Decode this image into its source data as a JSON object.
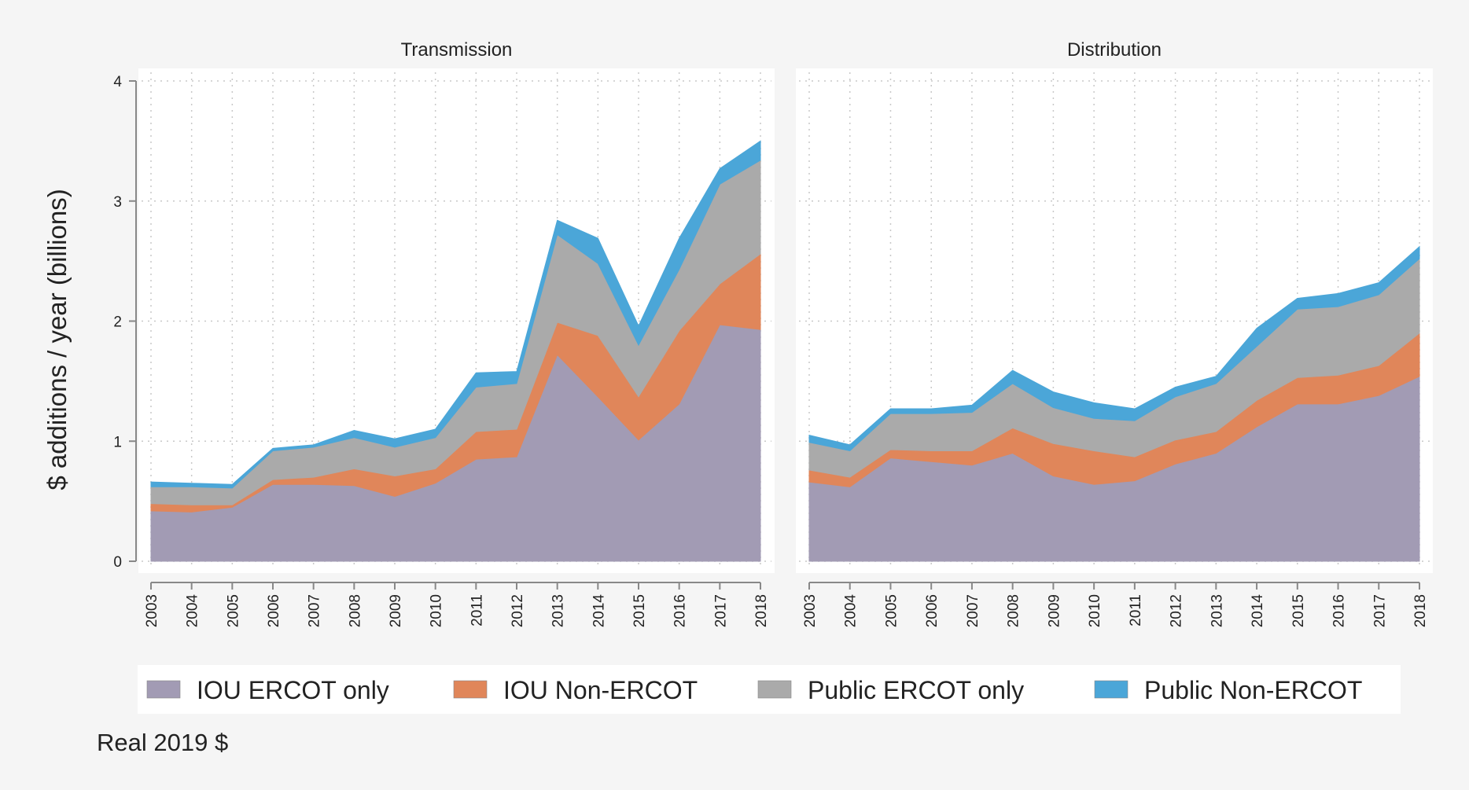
{
  "chart_data": [
    {
      "type": "area",
      "stacked": true,
      "title": "Transmission",
      "ylabel": "$ additions / year (billions)",
      "ylim": [
        0,
        4
      ],
      "yticks": [
        0,
        1,
        2,
        3,
        4
      ],
      "grid": true,
      "x": [
        2003,
        2004,
        2005,
        2006,
        2007,
        2008,
        2009,
        2010,
        2011,
        2012,
        2013,
        2014,
        2015,
        2016,
        2017,
        2018
      ],
      "series": [
        {
          "name": "IOU ERCOT only",
          "values": [
            0.42,
            0.41,
            0.45,
            0.64,
            0.64,
            0.63,
            0.54,
            0.65,
            0.85,
            0.87,
            1.72,
            1.37,
            1.01,
            1.31,
            1.97,
            1.93
          ]
        },
        {
          "name": "IOU Non-ERCOT",
          "values": [
            0.06,
            0.06,
            0.02,
            0.04,
            0.06,
            0.14,
            0.17,
            0.12,
            0.23,
            0.23,
            0.27,
            0.51,
            0.36,
            0.61,
            0.34,
            0.63
          ]
        },
        {
          "name": "Public ERCOT only",
          "values": [
            0.14,
            0.15,
            0.14,
            0.24,
            0.25,
            0.26,
            0.24,
            0.26,
            0.37,
            0.38,
            0.73,
            0.6,
            0.43,
            0.51,
            0.83,
            0.78
          ]
        },
        {
          "name": "Public Non-ERCOT",
          "values": [
            0.04,
            0.03,
            0.03,
            0.02,
            0.02,
            0.06,
            0.07,
            0.07,
            0.12,
            0.1,
            0.12,
            0.21,
            0.16,
            0.26,
            0.13,
            0.16
          ]
        }
      ]
    },
    {
      "type": "area",
      "stacked": true,
      "title": "Distribution",
      "ylim": [
        0,
        4
      ],
      "yticks": [
        0,
        1,
        2,
        3,
        4
      ],
      "grid": true,
      "x": [
        2003,
        2004,
        2005,
        2006,
        2007,
        2008,
        2009,
        2010,
        2011,
        2012,
        2013,
        2014,
        2015,
        2016,
        2017,
        2018
      ],
      "series": [
        {
          "name": "IOU ERCOT only",
          "values": [
            0.66,
            0.62,
            0.86,
            0.83,
            0.8,
            0.9,
            0.71,
            0.64,
            0.67,
            0.81,
            0.9,
            1.12,
            1.31,
            1.31,
            1.38,
            1.54
          ]
        },
        {
          "name": "IOU Non-ERCOT",
          "values": [
            0.1,
            0.08,
            0.07,
            0.09,
            0.12,
            0.21,
            0.27,
            0.28,
            0.2,
            0.2,
            0.18,
            0.22,
            0.22,
            0.24,
            0.25,
            0.36
          ]
        },
        {
          "name": "Public ERCOT only",
          "values": [
            0.23,
            0.22,
            0.3,
            0.31,
            0.32,
            0.37,
            0.3,
            0.27,
            0.3,
            0.36,
            0.4,
            0.45,
            0.57,
            0.57,
            0.59,
            0.62
          ]
        },
        {
          "name": "Public Non-ERCOT",
          "values": [
            0.06,
            0.05,
            0.04,
            0.04,
            0.06,
            0.11,
            0.13,
            0.13,
            0.1,
            0.08,
            0.06,
            0.15,
            0.09,
            0.11,
            0.1,
            0.1
          ]
        }
      ]
    }
  ],
  "legend": {
    "placement": "bottom",
    "items": [
      {
        "label": "IOU ERCOT only",
        "color": "#a29bb4"
      },
      {
        "label": "IOU Non-ERCOT",
        "color": "#e0865a"
      },
      {
        "label": "Public ERCOT only",
        "color": "#aaaaaa"
      },
      {
        "label": "Public Non-ERCOT",
        "color": "#4ba6d8"
      }
    ]
  },
  "note": "Real 2019 $"
}
